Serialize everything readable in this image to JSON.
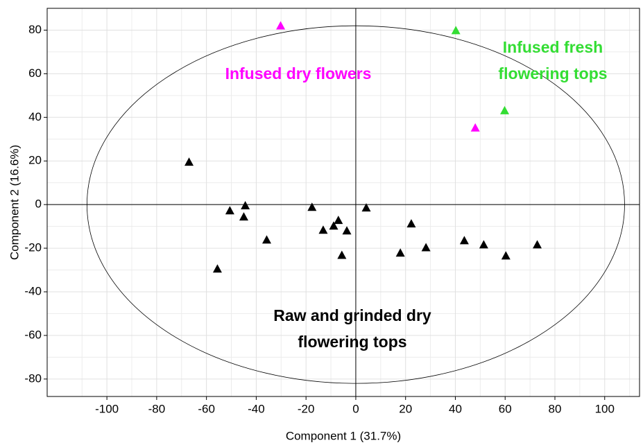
{
  "chart_data": {
    "type": "scatter",
    "xlabel": "Component 1 (31.7%)",
    "ylabel": "Component 2 (16.6%)",
    "xlim": [
      -124,
      114
    ],
    "ylim": [
      -88,
      90
    ],
    "xticks": [
      -100,
      -80,
      -60,
      -40,
      -20,
      0,
      20,
      40,
      60,
      80,
      100
    ],
    "yticks": [
      -80,
      -60,
      -40,
      -20,
      0,
      20,
      40,
      60,
      80
    ],
    "xminorticks": [
      -110,
      -90,
      -70,
      -50,
      -30,
      -10,
      10,
      30,
      50,
      70,
      90,
      110
    ],
    "yminorticks": [
      -70,
      -50,
      -30,
      -10,
      10,
      30,
      50,
      70
    ],
    "grid": true,
    "ellipse": {
      "rx": 108,
      "ry": 82
    },
    "series": [
      {
        "name": "Raw and grinded dry flowering tops",
        "color": "#000000",
        "x": [
          -67,
          -50.6,
          -44.4,
          -45,
          -55.6,
          -35.8,
          -17.6,
          -13.1,
          -8.9,
          -7,
          -3.6,
          -5.6,
          4.2,
          17.9,
          22.3,
          28.2,
          43.6,
          51.4,
          60.3,
          72.9
        ],
        "values": [
          19.4,
          -2.9,
          -0.6,
          -5.7,
          -29.6,
          -16.3,
          -1.3,
          -11.8,
          -9.9,
          -7.3,
          -12.1,
          -23.3,
          -1.6,
          -22.3,
          -8.9,
          -19.8,
          -16.6,
          -18.5,
          -23.6,
          -18.5
        ]
      },
      {
        "name": "Infused dry flowers",
        "color": "#ff00ff",
        "x": [
          -30.2,
          48
        ],
        "values": [
          81.9,
          35.1
        ]
      },
      {
        "name": "Infused fresh flowering tops",
        "color": "#33dd33",
        "x": [
          40.2,
          59.8
        ],
        "values": [
          79.7,
          43
        ]
      }
    ]
  }
}
